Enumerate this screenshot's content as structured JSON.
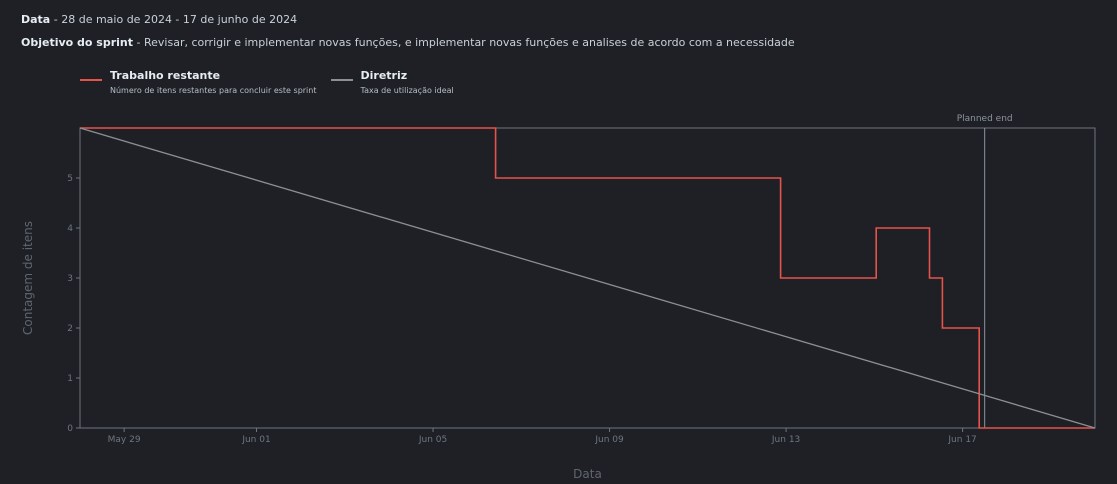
{
  "header": {
    "date_label": "Data",
    "date_value": "28 de maio de 2024 - 17 de junho de 2024",
    "goal_label": "Objetivo do sprint",
    "goal_value": "Revisar, corrigir e implementar novas funções, e implementar novas funções e analises de acordo com a necessidade"
  },
  "chart_data": {
    "type": "line",
    "xlabel": "Data",
    "ylabel": "Contagem de itens",
    "xlim": [
      "2024-05-28",
      "2024-06-20"
    ],
    "ylim": [
      0,
      6
    ],
    "x_ticks": [
      {
        "date": "2024-05-29",
        "label": "May 29"
      },
      {
        "date": "2024-06-01",
        "label": "Jun 01"
      },
      {
        "date": "2024-06-05",
        "label": "Jun 05"
      },
      {
        "date": "2024-06-09",
        "label": "Jun 09"
      },
      {
        "date": "2024-06-13",
        "label": "Jun 13"
      },
      {
        "date": "2024-06-17",
        "label": "Jun 17"
      }
    ],
    "y_ticks": [
      0,
      1,
      2,
      3,
      4,
      5
    ],
    "series": [
      {
        "name": "Trabalho restante",
        "description": "Número de itens restantes para concluir este sprint",
        "color": "#e5534b",
        "step": true,
        "points": [
          {
            "x": "2024-05-28 00:00",
            "y": 6
          },
          {
            "x": "2024-06-06 10:00",
            "y": 5
          },
          {
            "x": "2024-06-12 21:00",
            "y": 3
          },
          {
            "x": "2024-06-15 01:00",
            "y": 4
          },
          {
            "x": "2024-06-16 06:00",
            "y": 3
          },
          {
            "x": "2024-06-16 13:00",
            "y": 2
          },
          {
            "x": "2024-06-17 09:00",
            "y": 0
          },
          {
            "x": "2024-06-20 00:00",
            "y": 0
          }
        ]
      },
      {
        "name": "Diretriz",
        "description": "Taxa de utilização ideal",
        "color": "#8b8f96",
        "step": false,
        "points": [
          {
            "x": "2024-05-28 00:00",
            "y": 6
          },
          {
            "x": "2024-06-20 00:00",
            "y": 0
          }
        ]
      }
    ],
    "annotations": [
      {
        "x": "2024-06-17 12:00",
        "label": "Planned end"
      }
    ]
  }
}
